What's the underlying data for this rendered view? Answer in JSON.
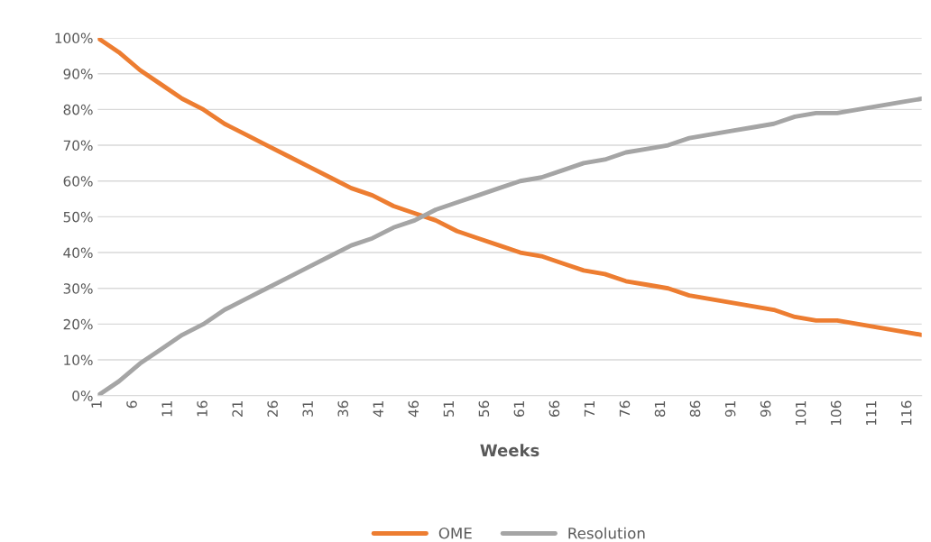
{
  "chart_data": {
    "type": "line",
    "xlabel": "Weeks",
    "xlim": [
      1,
      118
    ],
    "xticks": [
      1,
      6,
      11,
      16,
      21,
      26,
      31,
      36,
      41,
      46,
      51,
      56,
      61,
      66,
      71,
      76,
      81,
      86,
      91,
      96,
      101,
      106,
      111,
      116
    ],
    "ylim": [
      0,
      100
    ],
    "yticks": [
      {
        "value": 0,
        "label": "0%"
      },
      {
        "value": 10,
        "label": "10%"
      },
      {
        "value": 20,
        "label": "20%"
      },
      {
        "value": 30,
        "label": "30%"
      },
      {
        "value": 40,
        "label": "40%"
      },
      {
        "value": 50,
        "label": "50%"
      },
      {
        "value": 60,
        "label": "60%"
      },
      {
        "value": 70,
        "label": "70%"
      },
      {
        "value": 80,
        "label": "80%"
      },
      {
        "value": 90,
        "label": "90%"
      },
      {
        "value": 100,
        "label": "100%"
      }
    ],
    "x": [
      1,
      4,
      7,
      10,
      13,
      16,
      19,
      22,
      25,
      28,
      31,
      34,
      37,
      40,
      43,
      46,
      49,
      52,
      55,
      58,
      61,
      64,
      67,
      70,
      73,
      76,
      79,
      82,
      85,
      88,
      91,
      94,
      97,
      100,
      103,
      106,
      109,
      112,
      115,
      118
    ],
    "series": [
      {
        "name": "OME",
        "color": "#ed7d31",
        "values": [
          100,
          96,
          91,
          87,
          83,
          80,
          76,
          73,
          70,
          67,
          64,
          61,
          58,
          56,
          53,
          51,
          49,
          46,
          44,
          42,
          40,
          39,
          37,
          35,
          34,
          32,
          31,
          30,
          28,
          27,
          26,
          25,
          24,
          22,
          21,
          21,
          20,
          19,
          18,
          17
        ]
      },
      {
        "name": "Resolution",
        "color": "#a5a5a5",
        "values": [
          0,
          4,
          9,
          13,
          17,
          20,
          24,
          27,
          30,
          33,
          36,
          39,
          42,
          44,
          47,
          49,
          52,
          54,
          56,
          58,
          60,
          61,
          63,
          65,
          66,
          68,
          69,
          70,
          72,
          73,
          74,
          75,
          76,
          78,
          79,
          79,
          80,
          81,
          82,
          83
        ]
      }
    ],
    "grid": "y",
    "legend": "bottom",
    "marker": "none",
    "line_style": "solid"
  }
}
